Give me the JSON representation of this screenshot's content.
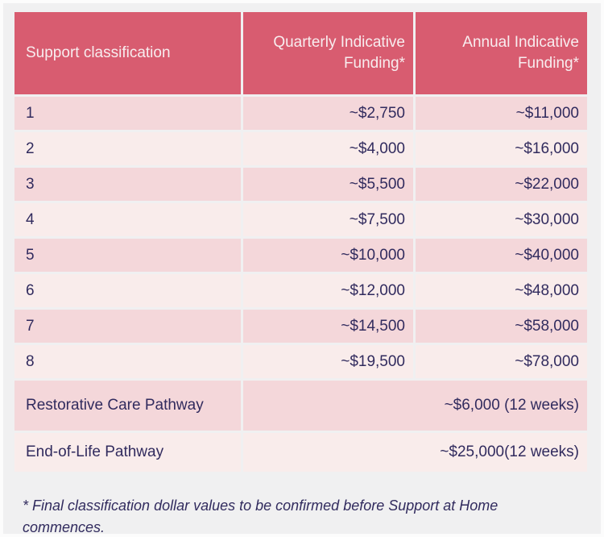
{
  "colors": {
    "page_bg": "#f0f0f1",
    "frame": "#fcfcfc",
    "header_bg": "#d85c70",
    "header_text": "#f8edef",
    "row_dark": "#f4d7da",
    "row_light": "#f9eceb",
    "text": "#312b5e"
  },
  "chart_data": {
    "type": "table",
    "columns": [
      "Support classification",
      "Quarterly Indicative Funding*",
      "Annual Indicative Funding*"
    ],
    "rows": [
      [
        "1",
        "~$2,750",
        "~$11,000"
      ],
      [
        "2",
        "~$4,000",
        "~$16,000"
      ],
      [
        "3",
        "~$5,500",
        "~$22,000"
      ],
      [
        "4",
        "~$7,500",
        "~$30,000"
      ],
      [
        "5",
        "~$10,000",
        "~$40,000"
      ],
      [
        "6",
        "~$12,000",
        "~$48,000"
      ],
      [
        "7",
        "~$14,500",
        "~$58,000"
      ],
      [
        "8",
        "~$19,500",
        "~$78,000"
      ]
    ],
    "pathway_rows": [
      {
        "label": "Restorative Care Pathway",
        "value": "~$6,000 (12 weeks)"
      },
      {
        "label": "End-of-Life Pathway",
        "value": "~$25,000(12 weeks)"
      }
    ]
  },
  "footnote": "* Final classification dollar values to be confirmed before Support at Home commences."
}
